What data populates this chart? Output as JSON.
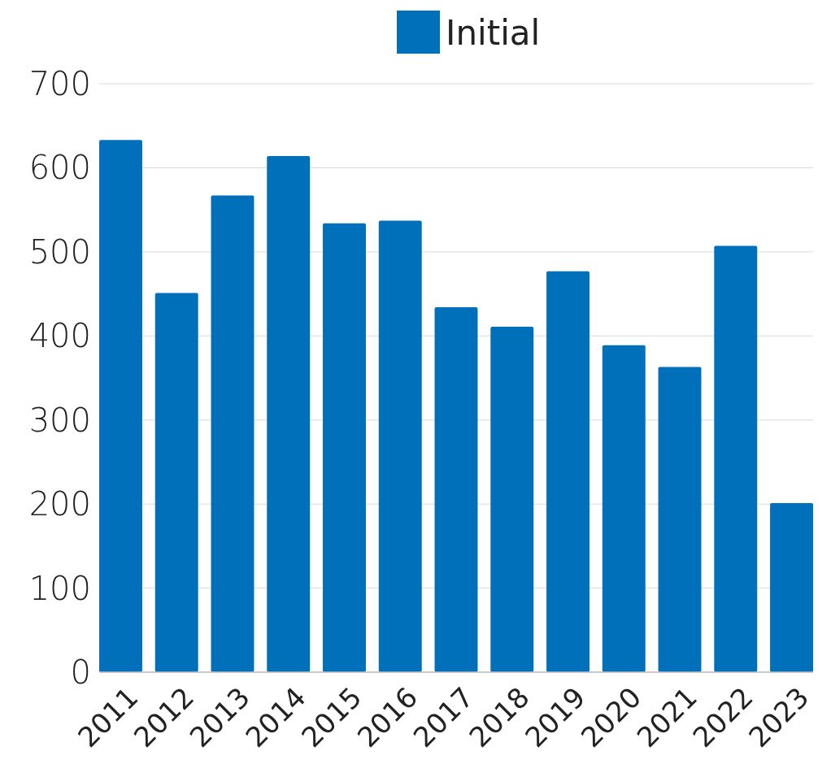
{
  "chart_data": {
    "type": "bar",
    "categories": [
      "2011",
      "2012",
      "2013",
      "2014",
      "2015",
      "2016",
      "2017",
      "2018",
      "2019",
      "2020",
      "2021",
      "2022",
      "2023"
    ],
    "series": [
      {
        "name": "Initial",
        "color": "#0070bb",
        "values": [
          633,
          451,
          567,
          614,
          534,
          537,
          434,
          411,
          477,
          389,
          363,
          507,
          201
        ]
      }
    ],
    "ylim": [
      0,
      700
    ],
    "yticks": [
      0,
      100,
      200,
      300,
      400,
      500,
      600,
      700
    ],
    "grid": "y",
    "legend": "top"
  }
}
